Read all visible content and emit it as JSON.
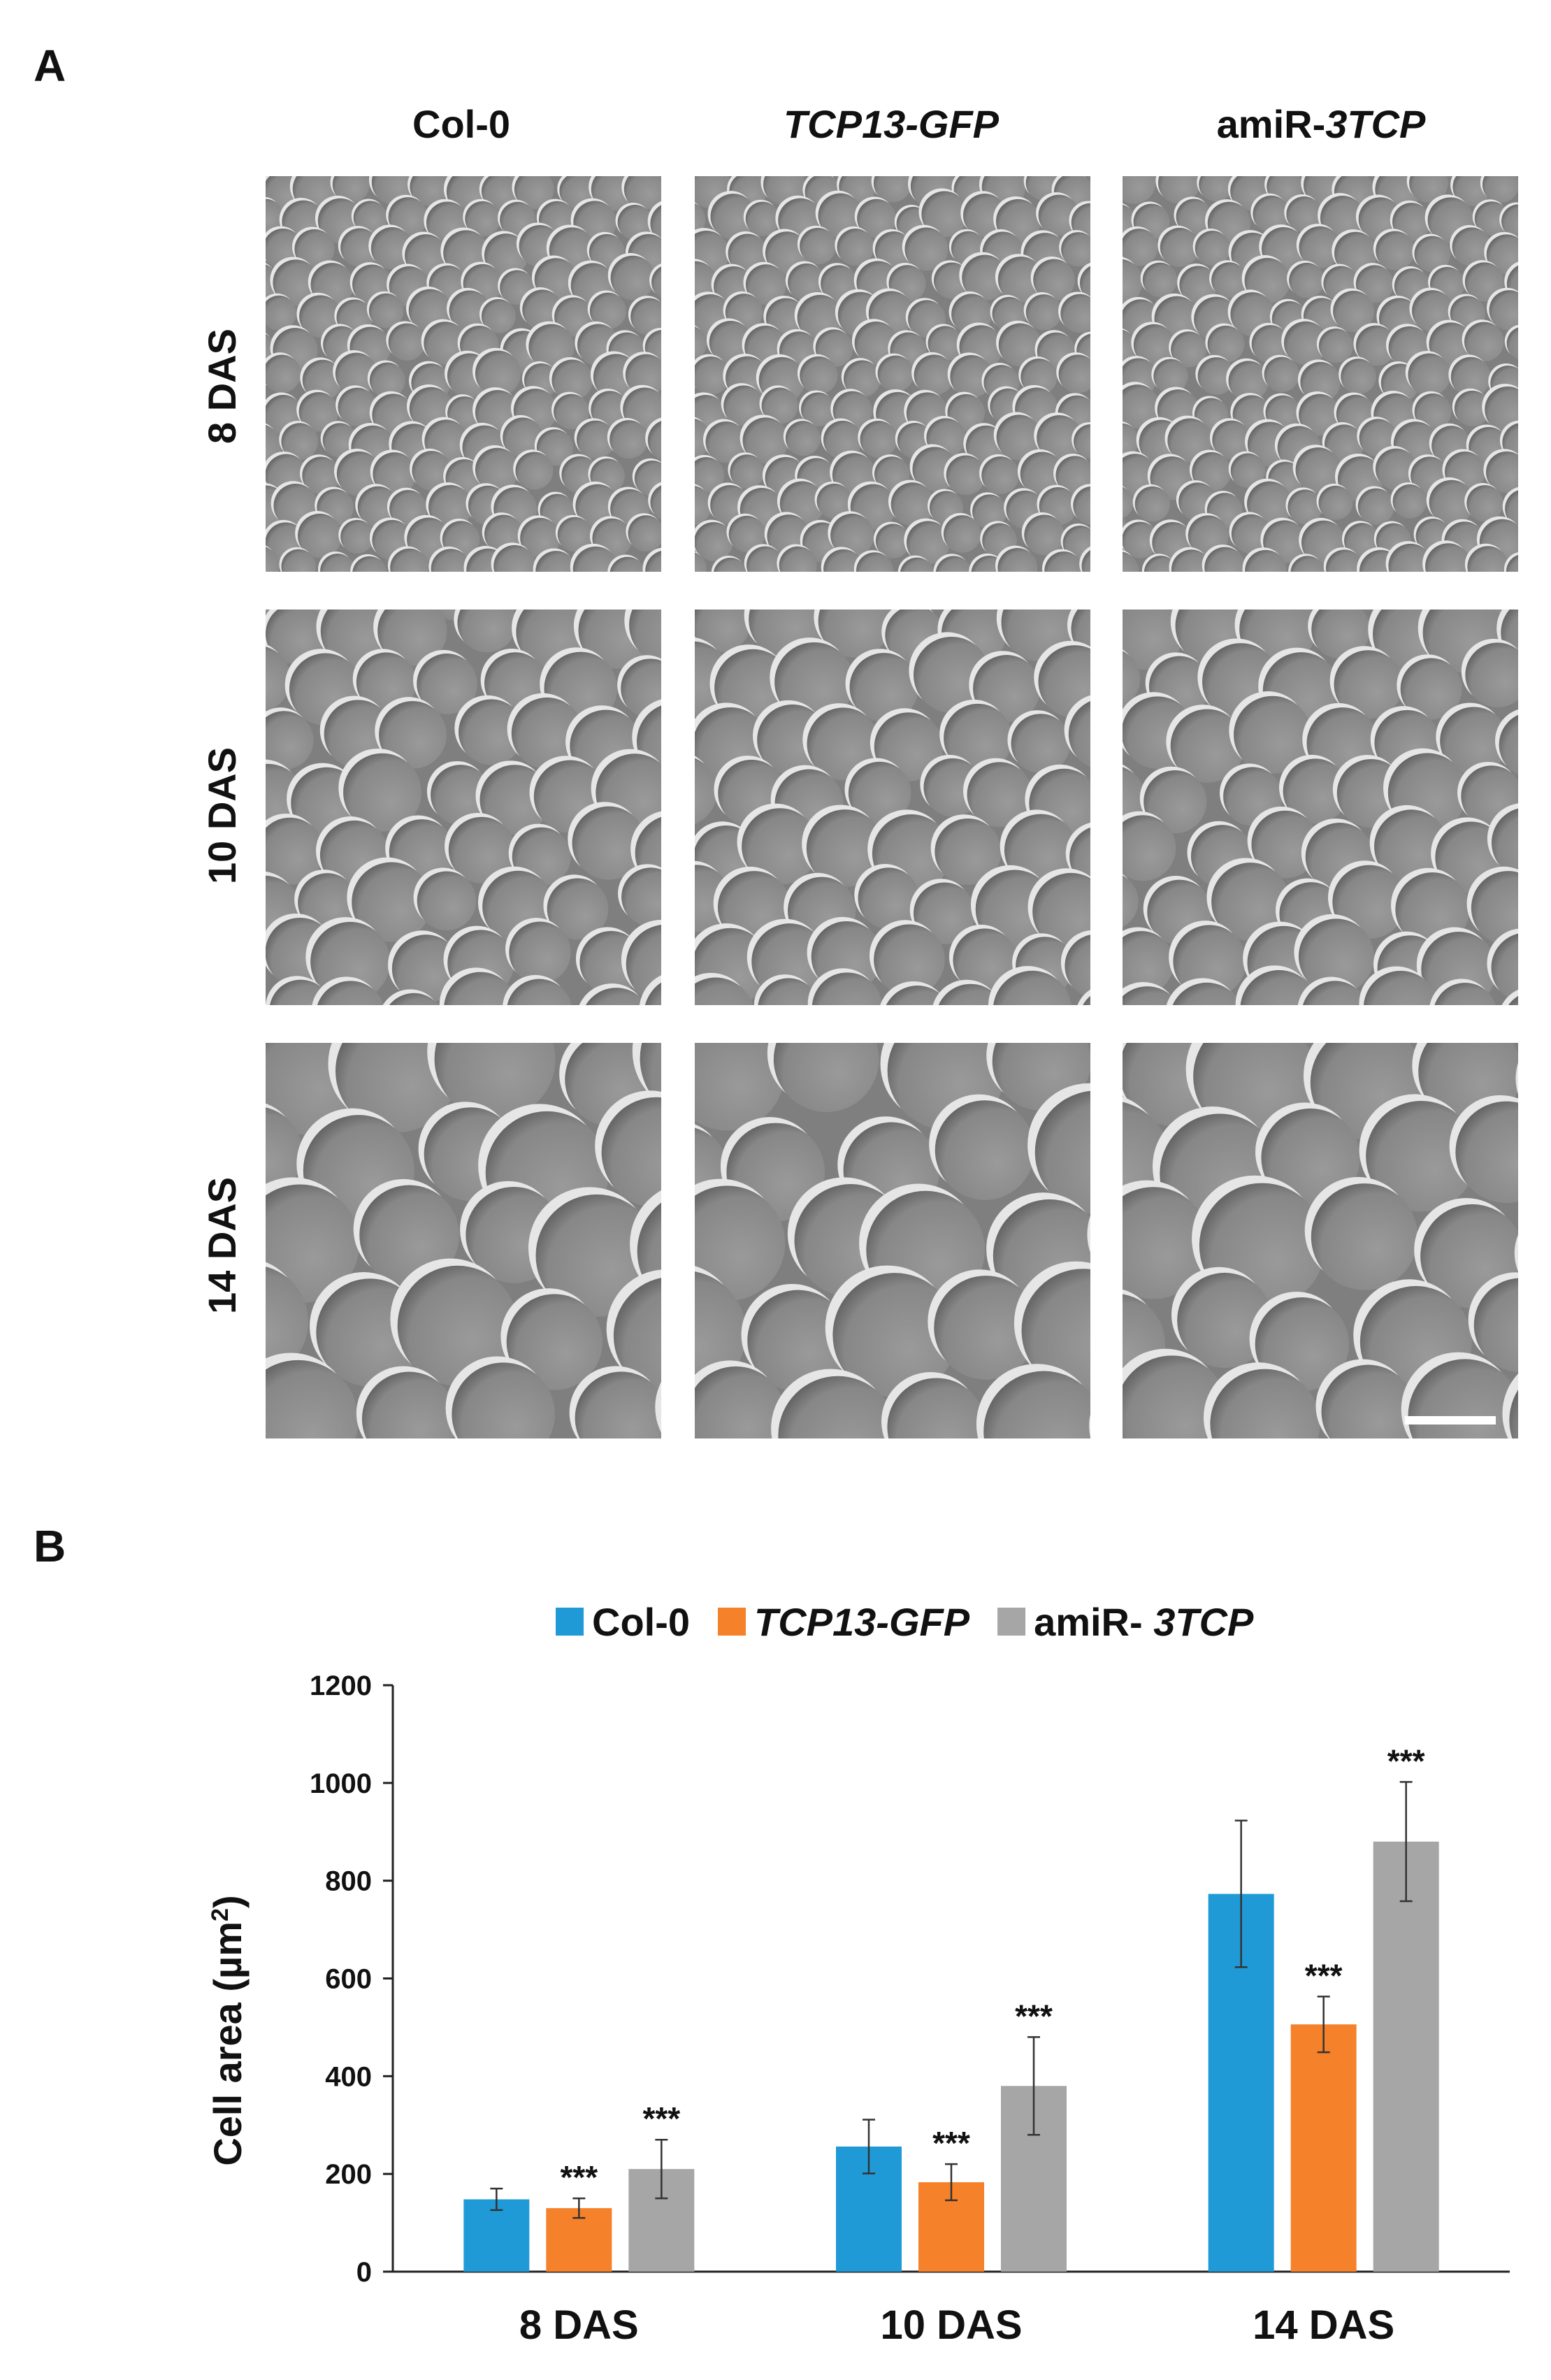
{
  "panel_a": {
    "letter": "A",
    "columns": [
      {
        "plain": "Col-0",
        "italic": ""
      },
      {
        "plain": "",
        "italic": "TCP13-GFP"
      },
      {
        "plain": "amiR-",
        "italic": "3TCP"
      }
    ],
    "rows": [
      "8 DAS",
      "10 DAS",
      "14 DAS"
    ]
  },
  "panel_b": {
    "letter": "B"
  },
  "chart_data": {
    "type": "bar",
    "categories": [
      "8 DAS",
      "10 DAS",
      "14 DAS"
    ],
    "series": [
      {
        "name": "Col-0",
        "name_plain": "Col-0",
        "name_italic": "",
        "color": "#1f9ad6",
        "values": [
          148,
          256,
          773
        ],
        "errors": [
          22,
          55,
          150
        ],
        "sig": [
          "",
          "",
          ""
        ]
      },
      {
        "name": "TCP13-GFP",
        "name_plain": "",
        "name_italic": "TCP13-GFP",
        "color": "#f5812a",
        "values": [
          130,
          183,
          506
        ],
        "errors": [
          20,
          37,
          57
        ],
        "sig": [
          "***",
          "***",
          "***"
        ]
      },
      {
        "name": "amiR- 3TCP",
        "name_plain": "amiR- ",
        "name_italic": "3TCP",
        "color": "#a6a6a6",
        "values": [
          210,
          380,
          880
        ],
        "errors": [
          60,
          100,
          122
        ],
        "sig": [
          "***",
          "***",
          "***"
        ]
      }
    ],
    "ylabel": "Cell area (µm²)",
    "ylabel_plain": "Cell area (µm",
    "ylabel_sup": "2",
    "ylabel_close": ")",
    "ylim": [
      0,
      1200
    ],
    "yticks": [
      0,
      200,
      400,
      600,
      800,
      1000,
      1200
    ],
    "legend_position": "top",
    "grid": false
  }
}
